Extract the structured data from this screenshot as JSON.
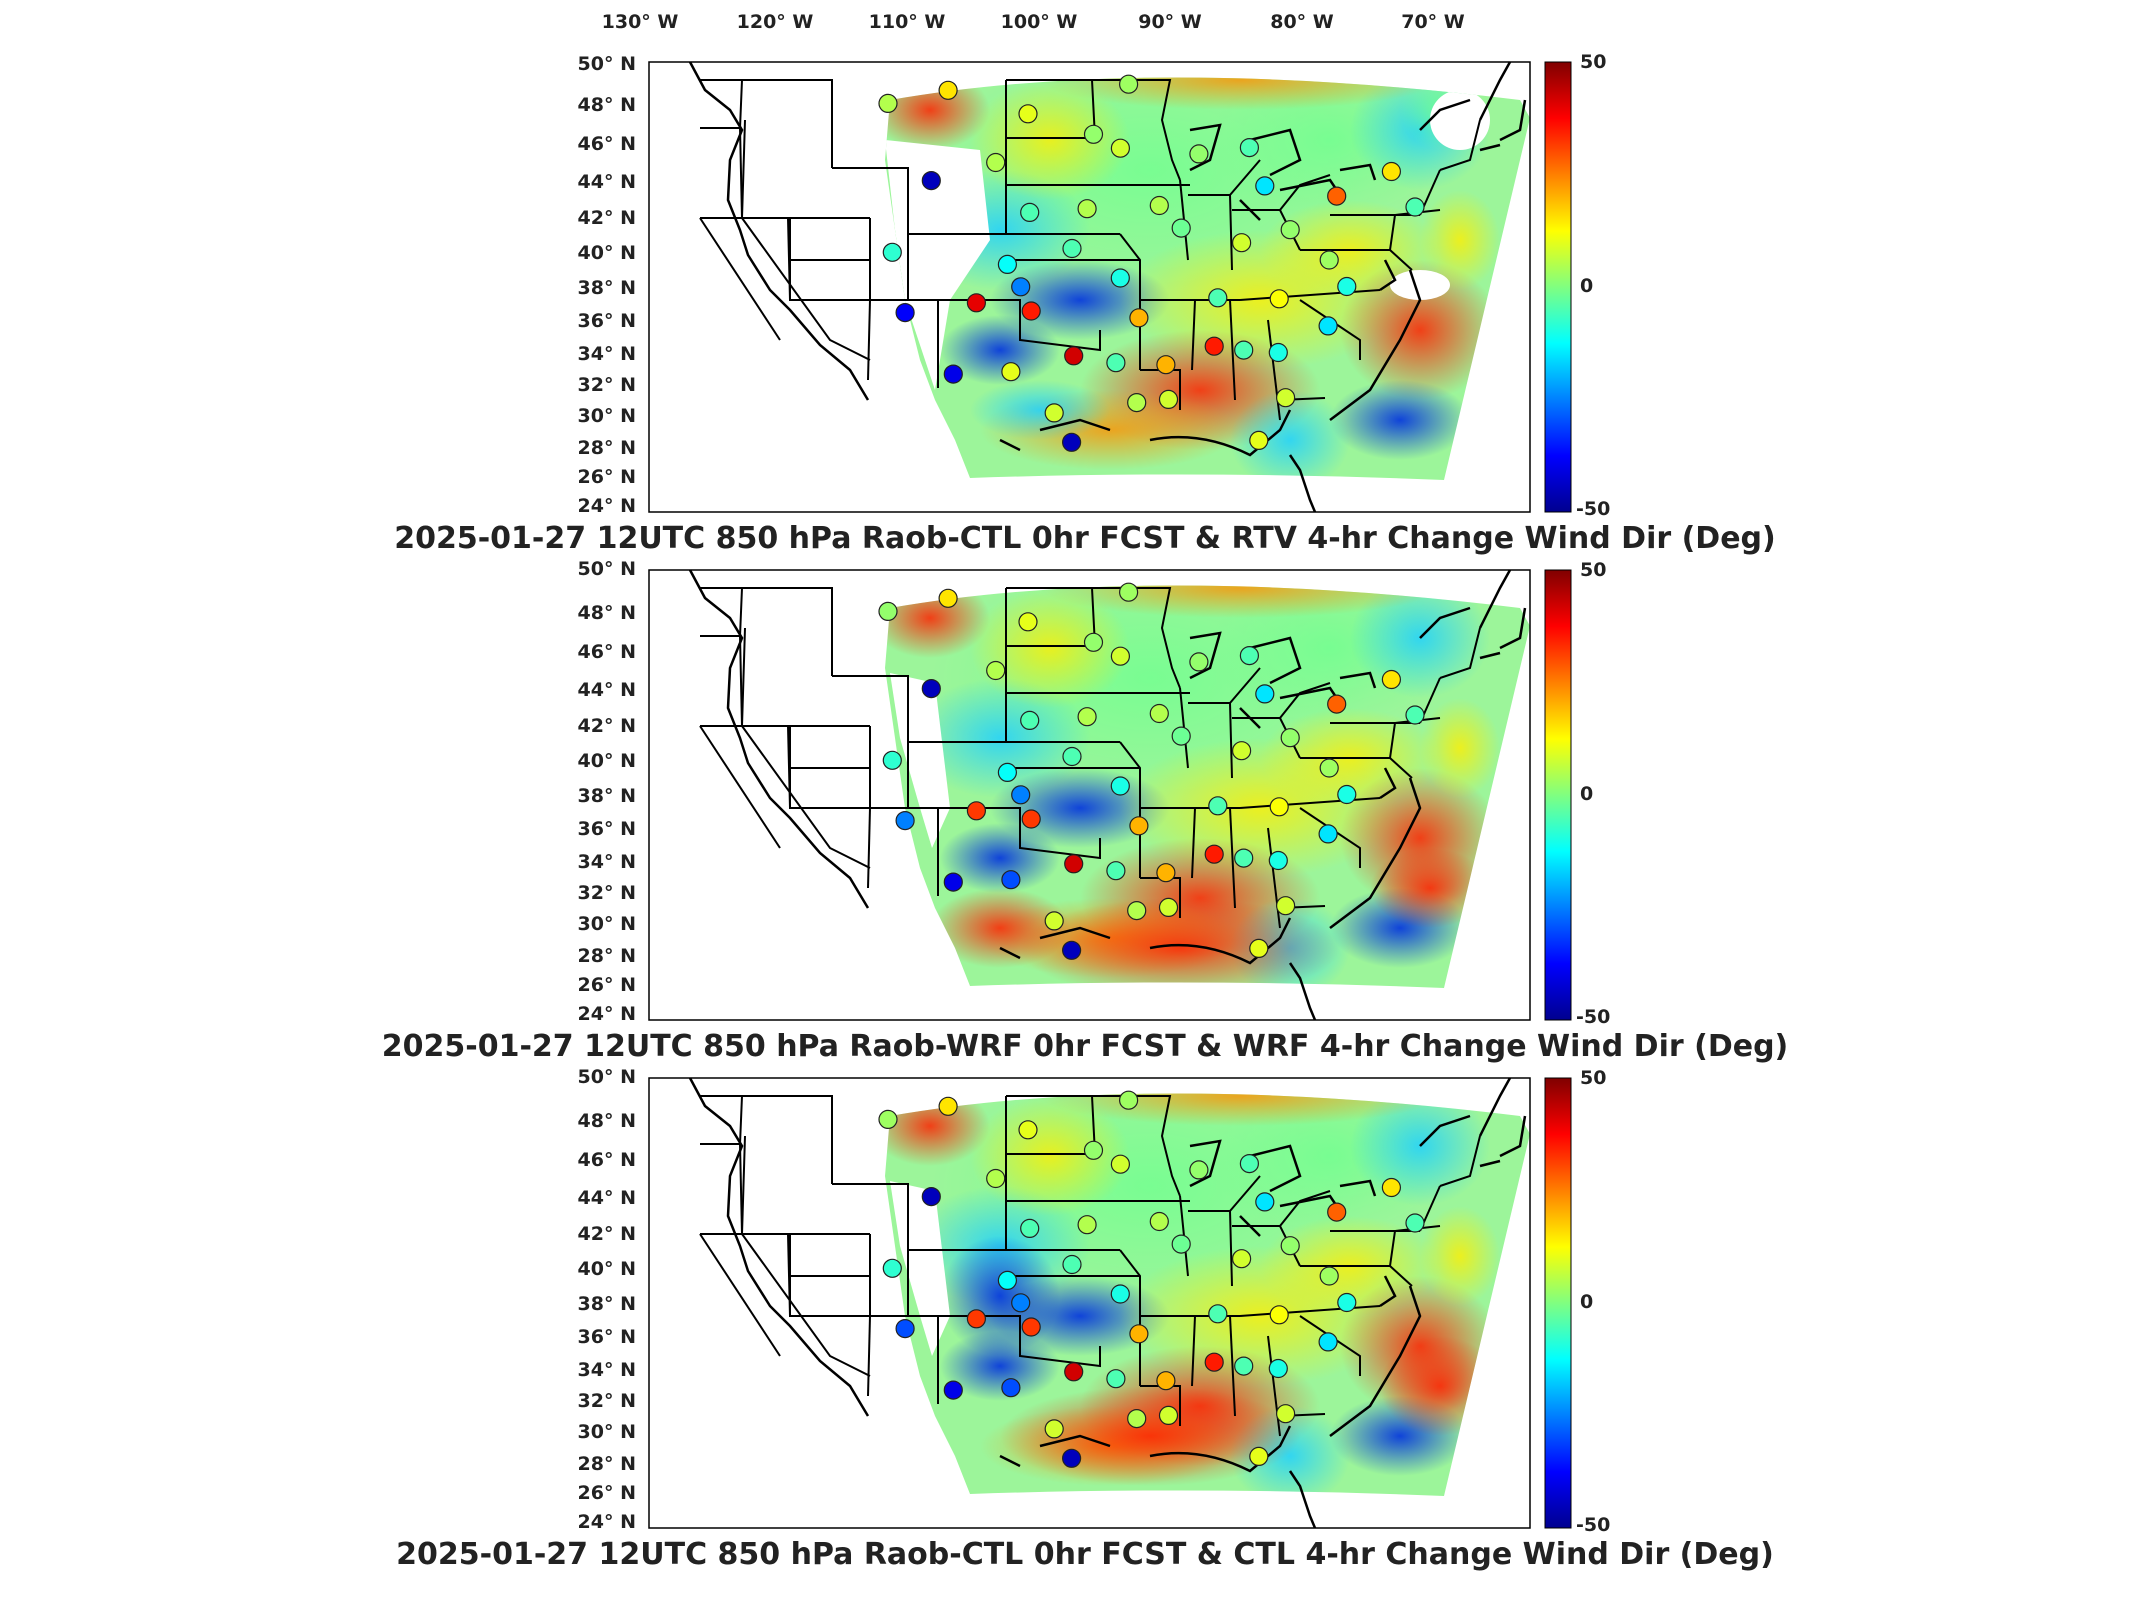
{
  "figure": {
    "lon_labels": [
      "130° W",
      "120° W",
      "110° W",
      "100° W",
      "90° W",
      "80° W",
      "70° W"
    ],
    "lat_labels": [
      "50° N",
      "48° N",
      "46° N",
      "44° N",
      "42° N",
      "40° N",
      "38° N",
      "36° N",
      "34° N",
      "32° N",
      "30° N",
      "28° N",
      "26° N",
      "24° N"
    ],
    "colorbar": {
      "max_label": "50",
      "mid_label": "0",
      "min_label": "-50",
      "vmin": -50,
      "vmax": 50,
      "colormap": [
        "#00008f",
        "#0000ff",
        "#0080ff",
        "#00ffff",
        "#80ff80",
        "#ffff00",
        "#ff8000",
        "#ff0000",
        "#800000"
      ]
    },
    "station_outline_color": "#222222",
    "state_line_color": "#000000"
  },
  "panels": [
    {
      "title": "2025-01-27 12UTC 850 hPa Raob-CTL 0hr FCST & RTV 4-hr Change Wind Dir (Deg)"
    },
    {
      "title": "2025-01-27 12UTC 850 hPa Raob-WRF 0hr FCST & WRF 4-hr Change Wind Dir (Deg)"
    },
    {
      "title": "2025-01-27 12UTC 850 hPa Raob-CTL 0hr FCST & CTL 4-hr Change Wind Dir (Deg)"
    }
  ],
  "stations": [
    {
      "lon": -111.0,
      "lat": 47.5,
      "values": [
        5,
        2,
        3
      ]
    },
    {
      "lon": -106.6,
      "lat": 48.2,
      "values": [
        15,
        15,
        15
      ]
    },
    {
      "lon": -100.8,
      "lat": 46.8,
      "values": [
        10,
        10,
        10
      ]
    },
    {
      "lon": -96.0,
      "lat": 45.6,
      "values": [
        2,
        2,
        2
      ]
    },
    {
      "lon": -93.5,
      "lat": 48.5,
      "values": [
        3,
        3,
        3
      ]
    },
    {
      "lon": -108.0,
      "lat": 43.0,
      "values": [
        -45,
        -45,
        -45
      ]
    },
    {
      "lon": -103.2,
      "lat": 44.0,
      "values": [
        5,
        5,
        5
      ]
    },
    {
      "lon": -94.0,
      "lat": 44.8,
      "values": [
        8,
        8,
        8
      ]
    },
    {
      "lon": -88.2,
      "lat": 44.5,
      "values": [
        2,
        2,
        2
      ]
    },
    {
      "lon": -84.5,
      "lat": 44.9,
      "values": [
        -5,
        -5,
        -5
      ]
    },
    {
      "lon": -83.2,
      "lat": 42.7,
      "values": [
        -15,
        -15,
        -15
      ]
    },
    {
      "lon": -100.7,
      "lat": 41.1,
      "values": [
        -5,
        -5,
        -5
      ]
    },
    {
      "lon": -96.4,
      "lat": 41.3,
      "values": [
        5,
        5,
        5
      ]
    },
    {
      "lon": -91.0,
      "lat": 41.5,
      "values": [
        5,
        5,
        5
      ]
    },
    {
      "lon": -89.3,
      "lat": 40.2,
      "values": [
        -2,
        -2,
        -2
      ]
    },
    {
      "lon": -84.7,
      "lat": 39.4,
      "values": [
        8,
        8,
        8
      ]
    },
    {
      "lon": -81.1,
      "lat": 40.2,
      "values": [
        2,
        2,
        2
      ]
    },
    {
      "lon": -77.8,
      "lat": 42.2,
      "values": [
        28,
        28,
        28
      ]
    },
    {
      "lon": -73.9,
      "lat": 43.7,
      "values": [
        15,
        15,
        15
      ]
    },
    {
      "lon": -111.1,
      "lat": 38.9,
      "values": [
        -8,
        -8,
        -8
      ]
    },
    {
      "lon": -102.4,
      "lat": 38.1,
      "values": [
        -12,
        -12,
        -12
      ]
    },
    {
      "lon": -97.5,
      "lat": 39.0,
      "values": [
        -5,
        -5,
        -5
      ]
    },
    {
      "lon": -93.8,
      "lat": 37.3,
      "values": [
        -10,
        -10,
        -10
      ]
    },
    {
      "lon": -78.0,
      "lat": 38.5,
      "values": [
        3,
        3,
        3
      ]
    },
    {
      "lon": -76.5,
      "lat": 37.0,
      "values": [
        -10,
        -10,
        -10
      ]
    },
    {
      "lon": -110.3,
      "lat": 35.4,
      "values": [
        -38,
        -25,
        -30
      ]
    },
    {
      "lon": -104.8,
      "lat": 35.9,
      "values": [
        40,
        32,
        32
      ]
    },
    {
      "lon": -100.6,
      "lat": 35.4,
      "values": [
        35,
        32,
        32
      ]
    },
    {
      "lon": -101.4,
      "lat": 36.8,
      "values": [
        -25,
        -25,
        -25
      ]
    },
    {
      "lon": -92.3,
      "lat": 35.0,
      "values": [
        20,
        20,
        20
      ]
    },
    {
      "lon": -86.3,
      "lat": 36.2,
      "values": [
        -5,
        -5,
        -5
      ]
    },
    {
      "lon": -81.6,
      "lat": 36.2,
      "values": [
        12,
        12,
        12
      ]
    },
    {
      "lon": -106.7,
      "lat": 31.8,
      "values": [
        -40,
        -40,
        -40
      ]
    },
    {
      "lon": -102.2,
      "lat": 31.9,
      "values": [
        10,
        -30,
        -30
      ]
    },
    {
      "lon": -97.3,
      "lat": 32.8,
      "values": [
        42,
        42,
        42
      ]
    },
    {
      "lon": -94.0,
      "lat": 32.4,
      "values": [
        -5,
        -5,
        -5
      ]
    },
    {
      "lon": -90.1,
      "lat": 32.3,
      "values": [
        20,
        20,
        20
      ]
    },
    {
      "lon": -86.4,
      "lat": 33.4,
      "values": [
        35,
        35,
        35
      ]
    },
    {
      "lon": -84.1,
      "lat": 33.2,
      "values": [
        -5,
        -5,
        -5
      ]
    },
    {
      "lon": -81.4,
      "lat": 33.1,
      "values": [
        -10,
        -10,
        -10
      ]
    },
    {
      "lon": -97.4,
      "lat": 27.8,
      "values": [
        -45,
        -45,
        -45
      ]
    },
    {
      "lon": -92.3,
      "lat": 30.1,
      "values": [
        5,
        5,
        5
      ]
    },
    {
      "lon": -89.8,
      "lat": 30.3,
      "values": [
        8,
        8,
        8
      ]
    },
    {
      "lon": -82.5,
      "lat": 28.0,
      "values": [
        10,
        10,
        10
      ]
    },
    {
      "lon": -80.6,
      "lat": 30.5,
      "values": [
        8,
        8,
        8
      ]
    },
    {
      "lon": -77.7,
      "lat": 34.7,
      "values": [
        -15,
        -15,
        -15
      ]
    },
    {
      "lon": -71.9,
      "lat": 41.7,
      "values": [
        -5,
        -5,
        -5
      ]
    },
    {
      "lon": -98.8,
      "lat": 29.5,
      "values": [
        8,
        8,
        8
      ]
    }
  ]
}
